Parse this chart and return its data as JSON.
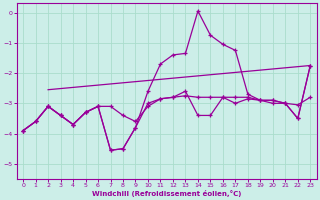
{
  "xlabel": "Windchill (Refroidissement éolien,°C)",
  "background_color": "#cceee8",
  "grid_color": "#aaddcc",
  "line_color": "#990099",
  "spine_color": "#990099",
  "xlim": [
    -0.5,
    23.5
  ],
  "ylim": [
    -5.5,
    0.3
  ],
  "yticks": [
    0,
    -1,
    -2,
    -3,
    -4,
    -5
  ],
  "xticks": [
    0,
    1,
    2,
    3,
    4,
    5,
    6,
    7,
    8,
    9,
    10,
    11,
    12,
    13,
    14,
    15,
    16,
    17,
    18,
    19,
    20,
    21,
    22,
    23
  ],
  "series1_x": [
    2,
    23
  ],
  "series1_y": [
    -2.55,
    -1.75
  ],
  "series2_x": [
    0,
    1,
    2,
    3,
    4,
    5,
    6,
    7,
    8,
    9,
    10,
    11,
    12,
    13,
    14,
    15,
    16,
    17,
    18,
    19,
    20,
    21,
    22,
    23
  ],
  "series2_y": [
    -3.9,
    -3.6,
    -3.1,
    -3.4,
    -3.7,
    -3.3,
    -3.1,
    -3.1,
    -3.4,
    -3.6,
    -3.1,
    -2.85,
    -2.8,
    -2.75,
    -2.8,
    -2.8,
    -2.8,
    -2.8,
    -2.8,
    -2.9,
    -2.9,
    -3.0,
    -3.05,
    -2.8
  ],
  "series3_x": [
    0,
    1,
    2,
    3,
    4,
    5,
    6,
    7,
    8,
    9,
    10,
    11,
    12,
    13,
    14,
    15,
    16,
    17,
    18,
    19,
    20,
    21,
    22,
    23
  ],
  "series3_y": [
    -3.9,
    -3.6,
    -3.1,
    -3.4,
    -3.7,
    -3.3,
    -3.1,
    -4.55,
    -4.5,
    -3.8,
    -3.0,
    -2.85,
    -2.8,
    -2.6,
    -3.4,
    -3.4,
    -2.8,
    -3.0,
    -2.85,
    -2.9,
    -2.9,
    -3.0,
    -3.5,
    -1.75
  ],
  "series4_x": [
    0,
    1,
    2,
    3,
    4,
    5,
    6,
    7,
    8,
    9,
    10,
    11,
    12,
    13,
    14,
    15,
    16,
    17,
    18,
    19,
    20,
    21,
    22,
    23
  ],
  "series4_y": [
    -3.9,
    -3.6,
    -3.1,
    -3.4,
    -3.7,
    -3.3,
    -3.1,
    -4.55,
    -4.5,
    -3.8,
    -2.6,
    -1.7,
    -1.4,
    -1.35,
    0.05,
    -0.75,
    -1.05,
    -1.25,
    -2.7,
    -2.9,
    -3.0,
    -3.0,
    -3.5,
    -1.75
  ]
}
